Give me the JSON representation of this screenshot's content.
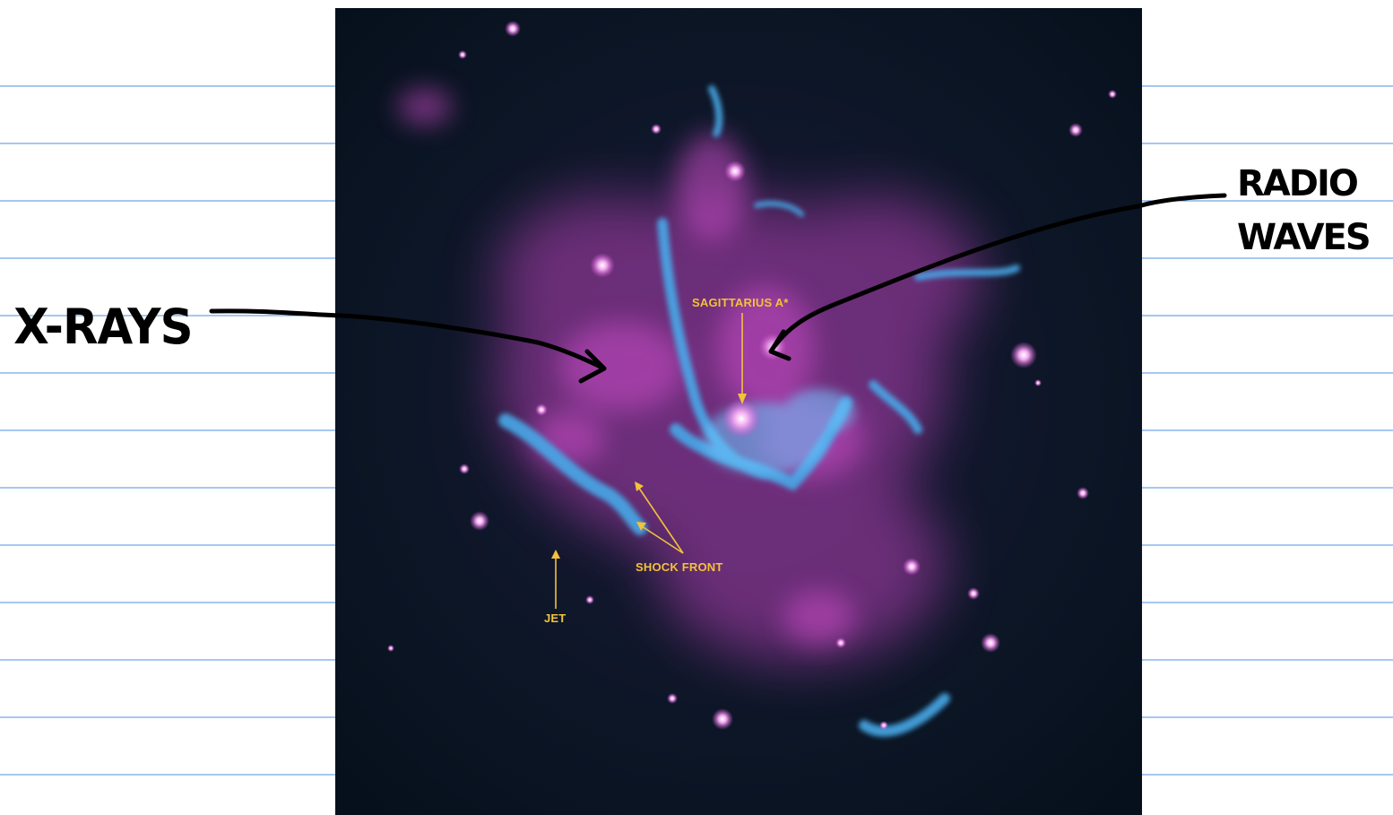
{
  "notebook": {
    "line_color": "#4f8fe0",
    "paper_color": "#ffffff"
  },
  "image": {
    "palette": {
      "xray": "#d24ccf",
      "radio": "#46a9e8",
      "background": "#0a1624",
      "annotation": "#f2c23a"
    },
    "labels": {
      "sgr_a": "SAGITTARIUS A*",
      "shock_front": "SHOCK FRONT",
      "jet": "JET"
    }
  },
  "handwriting": {
    "xrays": "X-RAYS",
    "radio_line1": "RADIO",
    "radio_line2": "WAVES"
  }
}
